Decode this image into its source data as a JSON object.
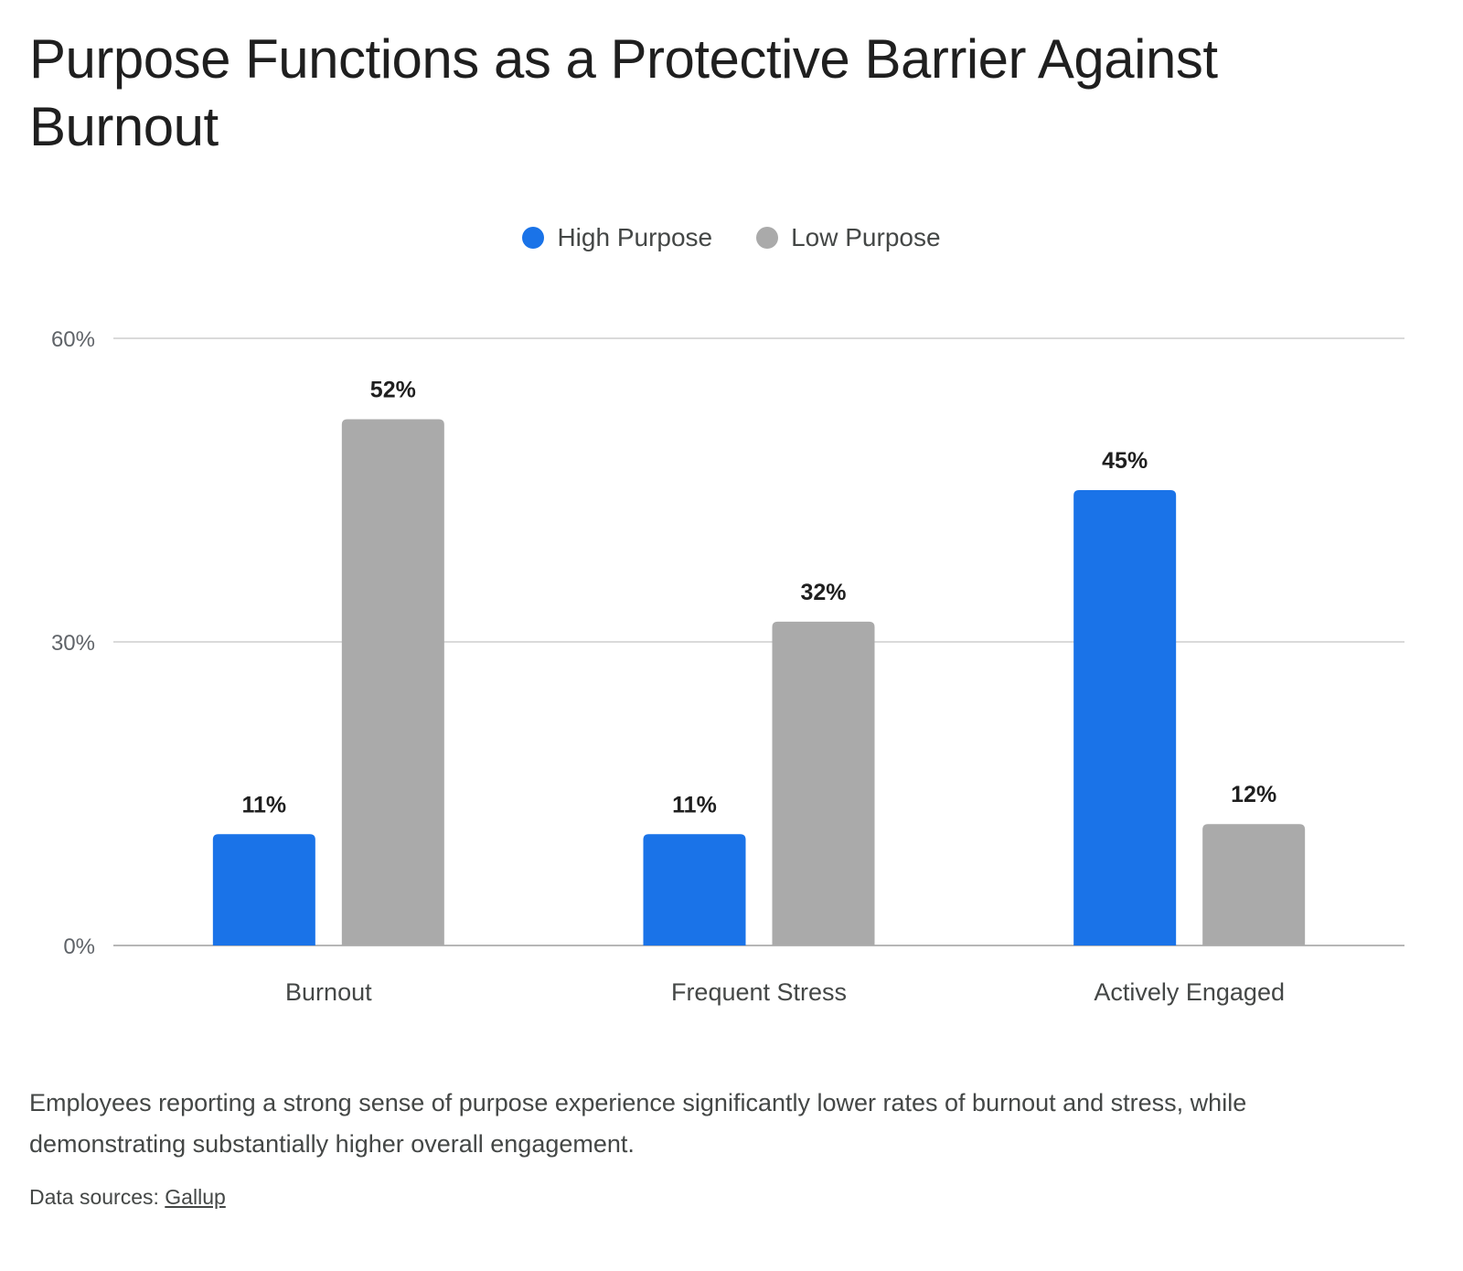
{
  "chart_data": {
    "type": "bar",
    "title": "Purpose Functions as a Protective Barrier Against Burnout",
    "categories": [
      "Burnout",
      "Frequent Stress",
      "Actively Engaged"
    ],
    "series": [
      {
        "name": "High Purpose",
        "values": [
          11,
          11,
          45
        ],
        "color": "#1a73e8"
      },
      {
        "name": "Low Purpose",
        "values": [
          52,
          32,
          12
        ],
        "color": "#aaaaaa"
      }
    ],
    "value_suffix": "%",
    "ylim": [
      0,
      60
    ],
    "yticks": [
      0,
      30,
      60
    ],
    "ytick_labels": [
      "0%",
      "30%",
      "60%"
    ],
    "grid": true,
    "legend_position": "top-center"
  },
  "caption": "Employees reporting a strong sense of purpose experience significantly lower rates of burnout and stress, while demonstrating substantially higher overall engagement.",
  "sources": {
    "label": "Data sources:",
    "link_text": "Gallup"
  }
}
